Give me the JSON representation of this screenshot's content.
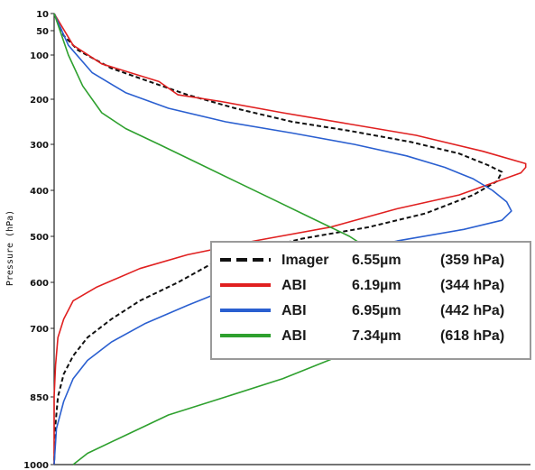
{
  "chart_data": {
    "type": "line",
    "title": "",
    "ylabel": "Pressure (hPa)",
    "xlabel": "",
    "ylim": [
      1000,
      10
    ],
    "y_ticks": [
      10,
      50,
      100,
      200,
      300,
      400,
      500,
      600,
      700,
      850,
      1000
    ],
    "y_tick_labels": [
      "10",
      "50",
      "100",
      "200",
      "300",
      "400",
      "500",
      "600",
      "700",
      "850",
      "1000"
    ],
    "xlim": [
      0,
      1
    ],
    "grid": false,
    "legend_position": "right",
    "series": [
      {
        "name": "Imager",
        "legend_wavelength": "6.55µm",
        "legend_peak": "(359 hPa)",
        "color": "#111111",
        "dash": true,
        "points": [
          [
            0.0,
            10
          ],
          [
            0.02,
            60
          ],
          [
            0.05,
            90
          ],
          [
            0.12,
            130
          ],
          [
            0.2,
            160
          ],
          [
            0.28,
            190
          ],
          [
            0.38,
            220
          ],
          [
            0.5,
            250
          ],
          [
            0.62,
            270
          ],
          [
            0.75,
            295
          ],
          [
            0.85,
            320
          ],
          [
            0.91,
            345
          ],
          [
            0.94,
            360
          ],
          [
            0.93,
            380
          ],
          [
            0.88,
            410
          ],
          [
            0.78,
            450
          ],
          [
            0.66,
            480
          ],
          [
            0.52,
            505
          ],
          [
            0.42,
            530
          ],
          [
            0.33,
            560
          ],
          [
            0.26,
            600
          ],
          [
            0.18,
            640
          ],
          [
            0.12,
            680
          ],
          [
            0.07,
            720
          ],
          [
            0.04,
            760
          ],
          [
            0.02,
            800
          ],
          [
            0.008,
            850
          ],
          [
            0.002,
            920
          ],
          [
            0.0,
            1000
          ]
        ]
      },
      {
        "name": "ABI",
        "legend_wavelength": "6.19µm",
        "legend_peak": "(344 hPa)",
        "color": "#e02020",
        "dash": false,
        "points": [
          [
            0.0,
            10
          ],
          [
            0.04,
            80
          ],
          [
            0.1,
            120
          ],
          [
            0.22,
            160
          ],
          [
            0.26,
            190
          ],
          [
            0.35,
            205
          ],
          [
            0.48,
            230
          ],
          [
            0.62,
            255
          ],
          [
            0.76,
            280
          ],
          [
            0.9,
            315
          ],
          [
            0.99,
            342
          ],
          [
            0.99,
            350
          ],
          [
            0.98,
            362
          ],
          [
            0.85,
            410
          ],
          [
            0.72,
            440
          ],
          [
            0.58,
            480
          ],
          [
            0.42,
            510
          ],
          [
            0.28,
            540
          ],
          [
            0.18,
            570
          ],
          [
            0.09,
            610
          ],
          [
            0.04,
            640
          ],
          [
            0.02,
            680
          ],
          [
            0.008,
            720
          ],
          [
            0.003,
            780
          ],
          [
            0.0,
            850
          ],
          [
            0.0,
            1000
          ]
        ]
      },
      {
        "name": "ABI",
        "legend_wavelength": "6.95µm",
        "legend_peak": "(442 hPa)",
        "color": "#2a5fd0",
        "dash": false,
        "points": [
          [
            0.0,
            10
          ],
          [
            0.03,
            80
          ],
          [
            0.08,
            140
          ],
          [
            0.15,
            185
          ],
          [
            0.24,
            220
          ],
          [
            0.36,
            250
          ],
          [
            0.5,
            275
          ],
          [
            0.63,
            300
          ],
          [
            0.74,
            325
          ],
          [
            0.82,
            350
          ],
          [
            0.88,
            375
          ],
          [
            0.92,
            400
          ],
          [
            0.95,
            425
          ],
          [
            0.96,
            445
          ],
          [
            0.94,
            465
          ],
          [
            0.86,
            485
          ],
          [
            0.72,
            510
          ],
          [
            0.56,
            545
          ],
          [
            0.4,
            600
          ],
          [
            0.28,
            650
          ],
          [
            0.19,
            690
          ],
          [
            0.12,
            730
          ],
          [
            0.07,
            770
          ],
          [
            0.04,
            810
          ],
          [
            0.02,
            860
          ],
          [
            0.005,
            920
          ],
          [
            0.0,
            1000
          ]
        ]
      },
      {
        "name": "ABI",
        "legend_wavelength": "7.34µm",
        "legend_peak": "(618 hPa)",
        "color": "#2ea02e",
        "dash": false,
        "points": [
          [
            0.0,
            10
          ],
          [
            0.03,
            100
          ],
          [
            0.06,
            170
          ],
          [
            0.1,
            230
          ],
          [
            0.15,
            265
          ],
          [
            0.22,
            300
          ],
          [
            0.3,
            340
          ],
          [
            0.38,
            380
          ],
          [
            0.46,
            420
          ],
          [
            0.54,
            460
          ],
          [
            0.62,
            500
          ],
          [
            0.68,
            540
          ],
          [
            0.72,
            580
          ],
          [
            0.74,
            618
          ],
          [
            0.73,
            650
          ],
          [
            0.68,
            700
          ],
          [
            0.6,
            760
          ],
          [
            0.48,
            810
          ],
          [
            0.36,
            850
          ],
          [
            0.24,
            890
          ],
          [
            0.14,
            940
          ],
          [
            0.07,
            975
          ],
          [
            0.04,
            1000
          ]
        ]
      }
    ]
  }
}
